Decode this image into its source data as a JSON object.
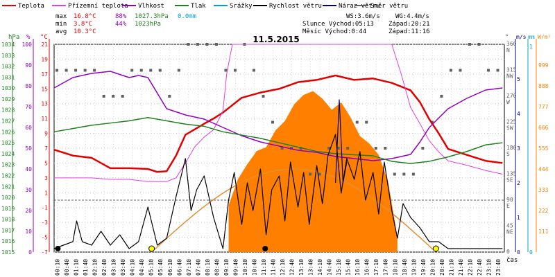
{
  "legend": [
    {
      "label": "Teplota",
      "color": "#e00000"
    },
    {
      "label": "Přízemní teplota",
      "color": "#e040e0"
    },
    {
      "label": "Vlhkost",
      "color": "#9000c0"
    },
    {
      "label": "Tlak",
      "color": "#208020"
    },
    {
      "label": "Srážky",
      "color": "#00a0d0"
    },
    {
      "label": "Rychlost větru",
      "color": "#000000"
    },
    {
      "label": "Náraz větru",
      "color": "#000080"
    },
    {
      "label": "Směr větru",
      "color": "#606060"
    }
  ],
  "stats": {
    "max_label": "max",
    "max_temp": "16.8°C",
    "max_hum": "88%",
    "max_press": "1027.3hPa",
    "max_rain": "0.0mm",
    "min_label": "min",
    "min_temp": "3.8°C",
    "min_hum": "44%",
    "min_press": "1023hPa",
    "avg_label": "avg",
    "avg_temp": "10.3°C",
    "ws": "WS:3.6m/s",
    "wg": "WG:4.4m/s",
    "sun_line": "Slunce Východ:05:13",
    "sun_set": "Západ:20:21",
    "moon_line": "Měsíc  Východ:0:44",
    "moon_set": "Západ:11:16"
  },
  "colors": {
    "temp": "#e00000",
    "ground_temp": "#e040e0",
    "humidity": "#9000c0",
    "pressure": "#208020",
    "rain": "#00a0d0",
    "wind": "#000000",
    "gust": "#000080",
    "direction": "#606060",
    "solar": "#ff8000",
    "sun_curve": "#e09030"
  },
  "chart_data": {
    "type": "line",
    "title": "11.5.2015",
    "x_unit_label": "čas",
    "axis_left": {
      "hpa_label": "hPa",
      "pct_label": "%",
      "temp_label": "°C",
      "hpa_ticks": [
        "1034",
        "1033",
        "1032",
        "1031",
        "1030",
        "1029",
        "1028",
        "1027",
        "1026",
        "1025",
        "1024",
        "1023",
        "1022",
        "1021",
        "1020",
        "1019",
        "1018",
        "1017",
        "1016",
        "1015"
      ],
      "pct_ticks": [
        "100",
        "90",
        "80",
        "70",
        "60",
        "50",
        "40",
        "30",
        "20",
        "10",
        "0"
      ],
      "temp_ticks": [
        "21",
        "19",
        "17",
        "15",
        "13",
        "11",
        "9",
        "7",
        "5",
        "3",
        "1",
        "-1",
        "-3",
        "-5",
        "-7"
      ],
      "temp_range": [
        -7,
        21
      ]
    },
    "axis_right": {
      "deg_label": "°",
      "ms_label": "m/s",
      "mm_label": "mm",
      "wm2_label": "W/m²",
      "deg_ticks": [
        {
          "v": "360",
          "d": "N"
        },
        {
          "v": "315",
          "d": "NW"
        },
        {
          "v": "270",
          "d": "W"
        },
        {
          "v": "225",
          "d": "SW"
        },
        {
          "v": "180",
          "d": "S"
        },
        {
          "v": "135",
          "d": "SE"
        },
        {
          "v": "90",
          "d": "E"
        },
        {
          "v": "45",
          "d": "NE"
        },
        {
          "v": "0",
          "d": ""
        }
      ],
      "ms_ticks": [
        "5",
        "4",
        "3",
        "2",
        "1",
        "0"
      ],
      "mm_ticks": [
        "1",
        "0"
      ],
      "solar_ticks": [
        "999",
        "888",
        "777",
        "666",
        "555",
        "444",
        "333",
        "222",
        "111"
      ]
    },
    "x_ticks": [
      "00:10",
      "00:40",
      "01:10",
      "01:40",
      "02:10",
      "02:40",
      "03:10",
      "03:40",
      "04:10",
      "04:40",
      "05:10",
      "05:40",
      "06:10",
      "06:40",
      "07:10",
      "07:40",
      "08:10",
      "08:40",
      "09:10",
      "09:40",
      "10:10",
      "10:40",
      "11:10",
      "11:40",
      "12:10",
      "12:40",
      "13:10",
      "13:40",
      "14:10",
      "14:40",
      "15:10",
      "15:40",
      "16:10",
      "16:40",
      "17:10",
      "17:40",
      "18:10",
      "18:40",
      "19:10",
      "19:40",
      "20:10",
      "20:40",
      "21:10",
      "21:40",
      "22:10",
      "22:40",
      "23:10",
      "23:40"
    ],
    "series": [
      {
        "name": "Teplota",
        "unit": "°C",
        "x": [
          0,
          1,
          2,
          3,
          4,
          5,
          5.5,
          6,
          6.5,
          7,
          8,
          8.5,
          9,
          10,
          11,
          12,
          13,
          14,
          15,
          16,
          17,
          18,
          19,
          19.5,
          20,
          20.5,
          21,
          22,
          23,
          23.9
        ],
        "values": [
          6.8,
          6.0,
          5.7,
          4.3,
          4.3,
          4.2,
          3.8,
          3.9,
          6.0,
          8.8,
          10.3,
          11.0,
          11.8,
          13.8,
          14.5,
          15.0,
          15.9,
          16.2,
          16.8,
          16.2,
          16.4,
          15.8,
          14.8,
          13.2,
          10.9,
          9.0,
          6.9,
          6.1,
          5.3,
          5.0
        ]
      },
      {
        "name": "Přízemní teplota",
        "unit": "°C",
        "x": [
          0,
          1,
          2,
          3,
          4,
          5,
          5.5,
          6,
          6.5,
          7,
          7.5,
          8,
          8.5,
          9,
          9.2,
          9.5,
          10,
          11,
          12,
          13,
          14,
          15,
          16,
          17,
          18,
          18.5,
          19,
          19.5,
          20,
          20.5,
          21,
          22,
          23,
          23.9
        ],
        "values": [
          3.0,
          3.0,
          3.0,
          2.8,
          2.8,
          2.5,
          2.5,
          2.5,
          3.0,
          5.0,
          7.2,
          8.5,
          9.5,
          12.0,
          17.0,
          21.0,
          21.0,
          21.0,
          21.0,
          21.0,
          21.0,
          21.0,
          21.0,
          21.0,
          21.0,
          17.0,
          12.5,
          10.3,
          8.0,
          6.5,
          5.3,
          4.7,
          4.0,
          3.5
        ]
      },
      {
        "name": "Vlhkost",
        "unit": "%",
        "x": [
          0,
          1,
          2,
          3,
          4,
          4.5,
          5,
          6,
          7,
          8,
          9,
          10,
          11,
          12,
          13,
          14,
          15,
          16,
          17,
          18,
          19,
          19.5,
          20,
          21,
          22,
          23,
          23.9
        ],
        "values": [
          79,
          84,
          86,
          87,
          84,
          85,
          84,
          69,
          66,
          64,
          60,
          56,
          53,
          51,
          49,
          48,
          46,
          45,
          44,
          45,
          47,
          53,
          60,
          69,
          74,
          78,
          79
        ]
      },
      {
        "name": "Tlak",
        "unit": "hPa",
        "x": [
          0,
          1,
          2,
          3,
          4,
          5,
          6,
          7,
          8,
          9,
          10,
          11,
          12,
          13,
          14,
          15,
          16,
          17,
          18,
          19,
          20,
          21,
          22,
          23,
          23.9
        ],
        "values": [
          1026.0,
          1026.3,
          1026.6,
          1026.8,
          1027.0,
          1027.3,
          1027.0,
          1026.7,
          1026.5,
          1026.0,
          1025.7,
          1025.4,
          1025.0,
          1024.6,
          1024.2,
          1024.0,
          1023.9,
          1023.8,
          1023.3,
          1023.1,
          1023.3,
          1023.7,
          1024.2,
          1024.8,
          1025.0
        ]
      },
      {
        "name": "Rychlost větru",
        "unit": "m/s",
        "x": [
          0,
          0.5,
          1,
          1.2,
          1.5,
          2,
          2.5,
          3,
          3.5,
          4,
          4.5,
          5,
          5.5,
          6,
          6.5,
          7,
          7.3,
          7.6,
          8,
          8.5,
          9,
          9.3,
          9.6,
          10,
          10.3,
          10.6,
          11,
          11.3,
          11.6,
          12,
          12.3,
          12.6,
          13,
          13.3,
          13.6,
          14,
          14.3,
          14.6,
          15,
          15.3,
          15.6,
          16,
          16.3,
          16.6,
          17,
          17.3,
          17.6,
          18,
          18.3,
          18.6,
          19,
          19.5,
          20,
          20.5,
          21,
          22,
          23,
          23.9
        ],
        "values": [
          0.1,
          0.2,
          0.3,
          0.9,
          0.3,
          0.2,
          0.6,
          0.2,
          0.5,
          0.1,
          0.3,
          1.3,
          0.2,
          0.4,
          1.6,
          2.7,
          1.2,
          1.8,
          2.2,
          1.0,
          0.1,
          1.5,
          2.3,
          0.8,
          2.0,
          1.2,
          2.4,
          0.5,
          1.8,
          2.2,
          0.9,
          2.6,
          1.3,
          2.3,
          0.8,
          2.5,
          1.4,
          2.8,
          3.4,
          1.7,
          2.7,
          2.1,
          2.9,
          1.5,
          2.3,
          1.1,
          2.6,
          1.2,
          0.4,
          1.4,
          1.0,
          0.7,
          0.3,
          0.3,
          0.1,
          0.1,
          0.1,
          0.1
        ]
      },
      {
        "name": "Náraz větru",
        "unit": "m/s",
        "x": [
          15.0,
          15.2,
          15.4,
          15.6
        ],
        "values": [
          2.0,
          4.4,
          2.0,
          2.6
        ]
      }
    ],
    "solar_radiation": {
      "unit": "W/m²",
      "x": [
        9.3,
        9.8,
        10.3,
        10.8,
        11.3,
        11.8,
        12.3,
        12.8,
        13.3,
        13.8,
        14.3,
        14.8,
        15.3,
        15.8,
        16.3,
        16.8,
        17.3,
        17.8,
        18.3
      ],
      "values": [
        250,
        390,
        470,
        540,
        560,
        650,
        700,
        790,
        840,
        860,
        820,
        760,
        800,
        720,
        620,
        580,
        520,
        380,
        80
      ]
    },
    "sun_curve_peak": 444,
    "wind_direction_deg": [
      315,
      315,
      315,
      315,
      315,
      270,
      270,
      270,
      315,
      315,
      315,
      315,
      270,
      315,
      360,
      360,
      360,
      360,
      315,
      315,
      360,
      315,
      270,
      225,
      180,
      180,
      180,
      135,
      135,
      180,
      180,
      180,
      225,
      225,
      180,
      180,
      135,
      135,
      135,
      180,
      225,
      270,
      315,
      315,
      360,
      360,
      315,
      315
    ]
  }
}
